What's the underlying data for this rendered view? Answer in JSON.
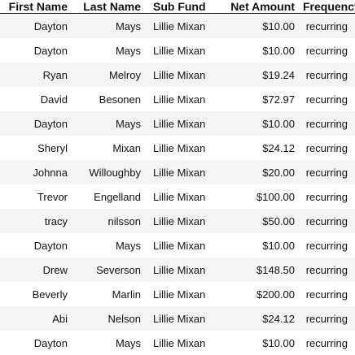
{
  "table": {
    "headers": [
      "First Name",
      "Last Name",
      "Sub Fund",
      "Net Amount",
      "Frequency"
    ],
    "rows": [
      [
        "Dayton",
        "Mays",
        "Lillie Mixan",
        "$10.00",
        "recurring"
      ],
      [
        "Dayton",
        "Mays",
        "Lillie Mixan",
        "$10.00",
        "recurring"
      ],
      [
        "Ryan",
        "Melroy",
        "Lillie Mixan",
        "$19.24",
        "recurring"
      ],
      [
        "David",
        "Besonen",
        "Lillie Mixan",
        "$72.97",
        "recurring"
      ],
      [
        "Dayton",
        "Mays",
        "Lillie Mixan",
        "$10.00",
        "recurring"
      ],
      [
        "Sheryl",
        "Mixan",
        "Lillie Mixan",
        "$24.12",
        "recurring"
      ],
      [
        "Johnna",
        "Willoughby",
        "Lillie Mixan",
        "$20.00",
        "recurring"
      ],
      [
        "Trevor",
        "Engelland",
        "Lillie Mixan",
        "$100.00",
        "recurring"
      ],
      [
        "tracy",
        "nilsson",
        "Lillie Mixan",
        "$50.00",
        "recurring"
      ],
      [
        "Dayton",
        "Mays",
        "Lillie Mixan",
        "$10.00",
        "recurring"
      ],
      [
        "Drew",
        "Severson",
        "Lillie Mixan",
        "$148.50",
        "recurring"
      ],
      [
        "Beverly",
        "Marlin",
        "Lillie Mixan",
        "$200.00",
        "recurring"
      ],
      [
        "Abi",
        "Nelson",
        "Lillie Mixan",
        "$24.12",
        "recurring"
      ],
      [
        "Dayton",
        "Mays",
        "Lillie Mixan",
        "$10.00",
        "recurring"
      ]
    ]
  }
}
